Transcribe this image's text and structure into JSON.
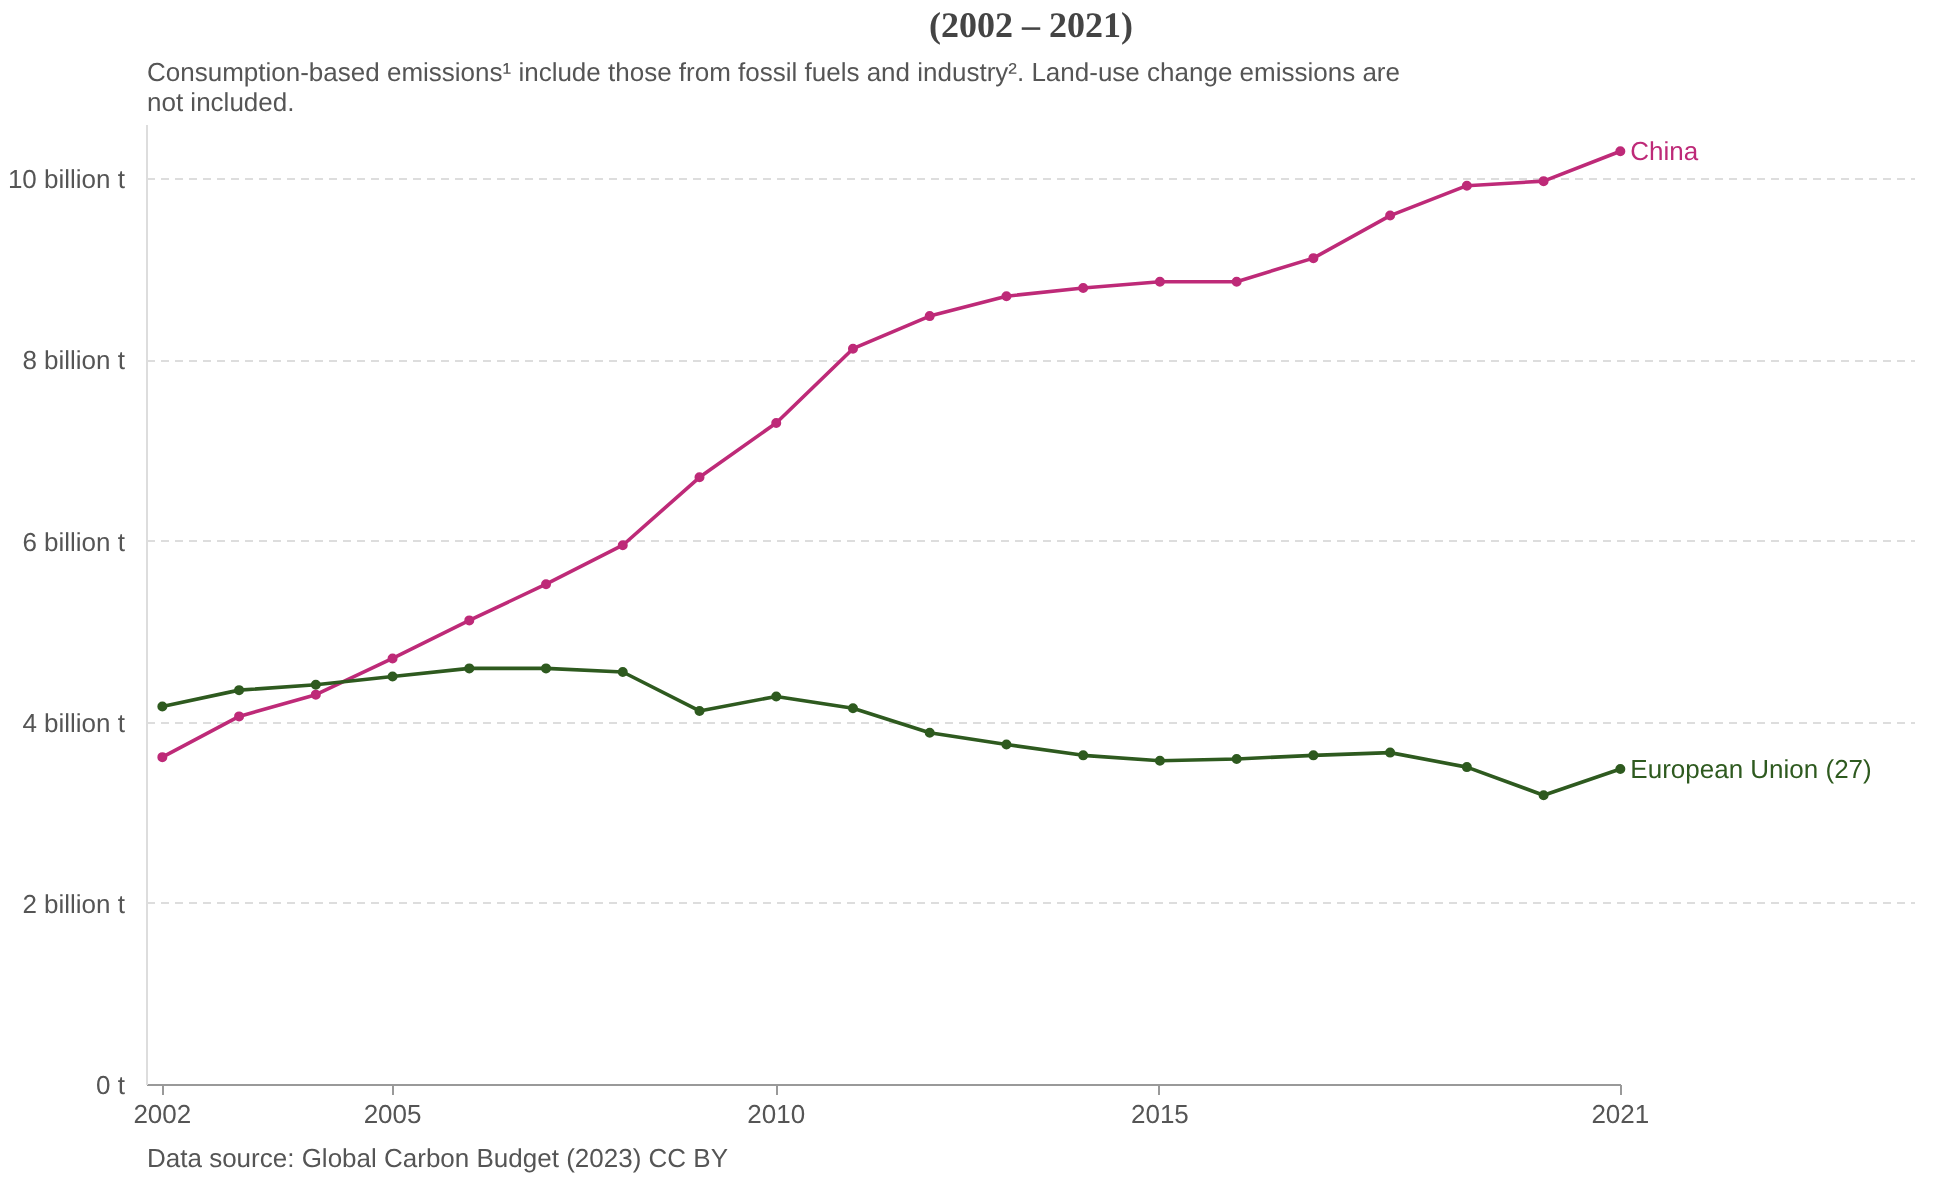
{
  "chart_data": {
    "type": "line",
    "title": "(2002 – 2021)",
    "subtitle": "Consumption-based emissions¹ include those from fossil fuels and industry². Land-use change emissions are not included.",
    "x": [
      2002,
      2003,
      2004,
      2005,
      2006,
      2007,
      2008,
      2009,
      2010,
      2011,
      2012,
      2013,
      2014,
      2015,
      2016,
      2017,
      2018,
      2019,
      2020,
      2021
    ],
    "series": [
      {
        "name": "China",
        "color": "#be2a78",
        "values": [
          3.62,
          4.07,
          4.31,
          4.71,
          5.13,
          5.53,
          5.96,
          6.71,
          7.31,
          8.13,
          8.49,
          8.71,
          8.8,
          8.87,
          8.87,
          9.13,
          9.6,
          9.93,
          9.98,
          10.31
        ]
      },
      {
        "name": "European Union (27)",
        "color": "#2e5a1f",
        "values": [
          4.18,
          4.36,
          4.42,
          4.51,
          4.6,
          4.6,
          4.56,
          4.13,
          4.29,
          4.16,
          3.89,
          3.76,
          3.64,
          3.58,
          3.6,
          3.64,
          3.67,
          3.51,
          3.2,
          3.49
        ]
      }
    ],
    "xlim": [
      2001.8,
      2021
    ],
    "xticks": [
      2002,
      2005,
      2010,
      2015,
      2021
    ],
    "ylim": [
      0,
      10.6
    ],
    "yticks": [
      {
        "value": 0,
        "label": "0 t"
      },
      {
        "value": 2,
        "label": "2 billion t"
      },
      {
        "value": 4,
        "label": "4 billion t"
      },
      {
        "value": 6,
        "label": "6 billion t"
      },
      {
        "value": 8,
        "label": "8 billion t"
      },
      {
        "value": 10,
        "label": "10 billion t"
      }
    ],
    "grid": "y",
    "legend": false,
    "marker": "circle",
    "line_style": "solid",
    "annotations": [
      "Data source: Global Carbon Budget (2023)",
      "CC BY"
    ]
  }
}
